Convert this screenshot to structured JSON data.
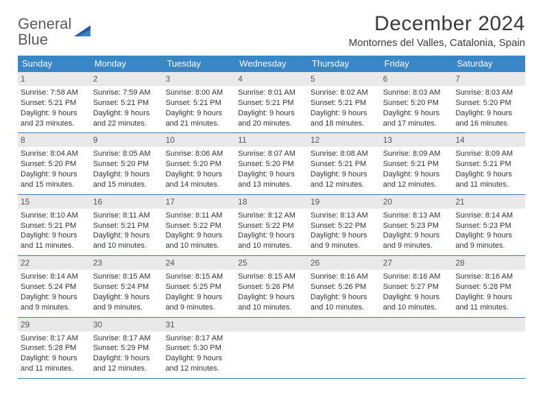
{
  "brand": {
    "word1": "General",
    "word2": "Blue"
  },
  "title": "December 2024",
  "location": "Montornes del Valles, Catalonia, Spain",
  "colors": {
    "header_bg": "#3a87c8",
    "header_text": "#ffffff",
    "daynum_bg": "#e9e9e9",
    "week_border": "#3a76a8",
    "body_text": "#333333",
    "logo_gray": "#5a5a5a",
    "logo_blue": "#2b7bbf"
  },
  "weekdays": [
    "Sunday",
    "Monday",
    "Tuesday",
    "Wednesday",
    "Thursday",
    "Friday",
    "Saturday"
  ],
  "weeks": [
    [
      {
        "n": "1",
        "sr": "Sunrise: 7:58 AM",
        "ss": "Sunset: 5:21 PM",
        "d1": "Daylight: 9 hours",
        "d2": "and 23 minutes."
      },
      {
        "n": "2",
        "sr": "Sunrise: 7:59 AM",
        "ss": "Sunset: 5:21 PM",
        "d1": "Daylight: 9 hours",
        "d2": "and 22 minutes."
      },
      {
        "n": "3",
        "sr": "Sunrise: 8:00 AM",
        "ss": "Sunset: 5:21 PM",
        "d1": "Daylight: 9 hours",
        "d2": "and 21 minutes."
      },
      {
        "n": "4",
        "sr": "Sunrise: 8:01 AM",
        "ss": "Sunset: 5:21 PM",
        "d1": "Daylight: 9 hours",
        "d2": "and 20 minutes."
      },
      {
        "n": "5",
        "sr": "Sunrise: 8:02 AM",
        "ss": "Sunset: 5:21 PM",
        "d1": "Daylight: 9 hours",
        "d2": "and 18 minutes."
      },
      {
        "n": "6",
        "sr": "Sunrise: 8:03 AM",
        "ss": "Sunset: 5:20 PM",
        "d1": "Daylight: 9 hours",
        "d2": "and 17 minutes."
      },
      {
        "n": "7",
        "sr": "Sunrise: 8:03 AM",
        "ss": "Sunset: 5:20 PM",
        "d1": "Daylight: 9 hours",
        "d2": "and 16 minutes."
      }
    ],
    [
      {
        "n": "8",
        "sr": "Sunrise: 8:04 AM",
        "ss": "Sunset: 5:20 PM",
        "d1": "Daylight: 9 hours",
        "d2": "and 15 minutes."
      },
      {
        "n": "9",
        "sr": "Sunrise: 8:05 AM",
        "ss": "Sunset: 5:20 PM",
        "d1": "Daylight: 9 hours",
        "d2": "and 15 minutes."
      },
      {
        "n": "10",
        "sr": "Sunrise: 8:06 AM",
        "ss": "Sunset: 5:20 PM",
        "d1": "Daylight: 9 hours",
        "d2": "and 14 minutes."
      },
      {
        "n": "11",
        "sr": "Sunrise: 8:07 AM",
        "ss": "Sunset: 5:20 PM",
        "d1": "Daylight: 9 hours",
        "d2": "and 13 minutes."
      },
      {
        "n": "12",
        "sr": "Sunrise: 8:08 AM",
        "ss": "Sunset: 5:21 PM",
        "d1": "Daylight: 9 hours",
        "d2": "and 12 minutes."
      },
      {
        "n": "13",
        "sr": "Sunrise: 8:09 AM",
        "ss": "Sunset: 5:21 PM",
        "d1": "Daylight: 9 hours",
        "d2": "and 12 minutes."
      },
      {
        "n": "14",
        "sr": "Sunrise: 8:09 AM",
        "ss": "Sunset: 5:21 PM",
        "d1": "Daylight: 9 hours",
        "d2": "and 11 minutes."
      }
    ],
    [
      {
        "n": "15",
        "sr": "Sunrise: 8:10 AM",
        "ss": "Sunset: 5:21 PM",
        "d1": "Daylight: 9 hours",
        "d2": "and 11 minutes."
      },
      {
        "n": "16",
        "sr": "Sunrise: 8:11 AM",
        "ss": "Sunset: 5:21 PM",
        "d1": "Daylight: 9 hours",
        "d2": "and 10 minutes."
      },
      {
        "n": "17",
        "sr": "Sunrise: 8:11 AM",
        "ss": "Sunset: 5:22 PM",
        "d1": "Daylight: 9 hours",
        "d2": "and 10 minutes."
      },
      {
        "n": "18",
        "sr": "Sunrise: 8:12 AM",
        "ss": "Sunset: 5:22 PM",
        "d1": "Daylight: 9 hours",
        "d2": "and 10 minutes."
      },
      {
        "n": "19",
        "sr": "Sunrise: 8:13 AM",
        "ss": "Sunset: 5:22 PM",
        "d1": "Daylight: 9 hours",
        "d2": "and 9 minutes."
      },
      {
        "n": "20",
        "sr": "Sunrise: 8:13 AM",
        "ss": "Sunset: 5:23 PM",
        "d1": "Daylight: 9 hours",
        "d2": "and 9 minutes."
      },
      {
        "n": "21",
        "sr": "Sunrise: 8:14 AM",
        "ss": "Sunset: 5:23 PM",
        "d1": "Daylight: 9 hours",
        "d2": "and 9 minutes."
      }
    ],
    [
      {
        "n": "22",
        "sr": "Sunrise: 8:14 AM",
        "ss": "Sunset: 5:24 PM",
        "d1": "Daylight: 9 hours",
        "d2": "and 9 minutes."
      },
      {
        "n": "23",
        "sr": "Sunrise: 8:15 AM",
        "ss": "Sunset: 5:24 PM",
        "d1": "Daylight: 9 hours",
        "d2": "and 9 minutes."
      },
      {
        "n": "24",
        "sr": "Sunrise: 8:15 AM",
        "ss": "Sunset: 5:25 PM",
        "d1": "Daylight: 9 hours",
        "d2": "and 9 minutes."
      },
      {
        "n": "25",
        "sr": "Sunrise: 8:15 AM",
        "ss": "Sunset: 5:26 PM",
        "d1": "Daylight: 9 hours",
        "d2": "and 10 minutes."
      },
      {
        "n": "26",
        "sr": "Sunrise: 8:16 AM",
        "ss": "Sunset: 5:26 PM",
        "d1": "Daylight: 9 hours",
        "d2": "and 10 minutes."
      },
      {
        "n": "27",
        "sr": "Sunrise: 8:16 AM",
        "ss": "Sunset: 5:27 PM",
        "d1": "Daylight: 9 hours",
        "d2": "and 10 minutes."
      },
      {
        "n": "28",
        "sr": "Sunrise: 8:16 AM",
        "ss": "Sunset: 5:28 PM",
        "d1": "Daylight: 9 hours",
        "d2": "and 11 minutes."
      }
    ],
    [
      {
        "n": "29",
        "sr": "Sunrise: 8:17 AM",
        "ss": "Sunset: 5:28 PM",
        "d1": "Daylight: 9 hours",
        "d2": "and 11 minutes."
      },
      {
        "n": "30",
        "sr": "Sunrise: 8:17 AM",
        "ss": "Sunset: 5:29 PM",
        "d1": "Daylight: 9 hours",
        "d2": "and 12 minutes."
      },
      {
        "n": "31",
        "sr": "Sunrise: 8:17 AM",
        "ss": "Sunset: 5:30 PM",
        "d1": "Daylight: 9 hours",
        "d2": "and 12 minutes."
      },
      null,
      null,
      null,
      null
    ]
  ]
}
